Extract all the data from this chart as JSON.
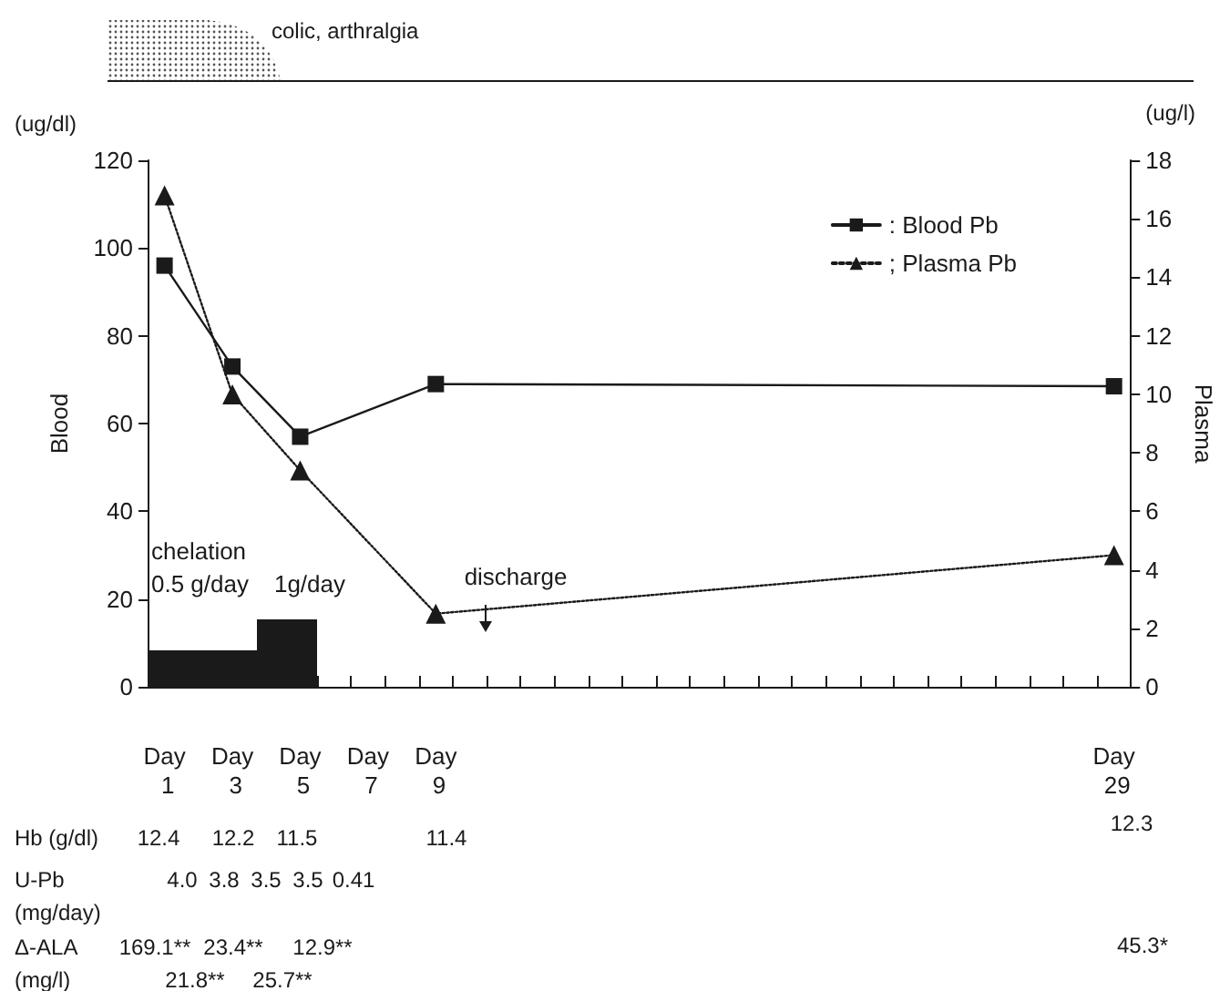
{
  "chart_data": {
    "type": "line",
    "ylabel": "Blood",
    "y2label": "Plasma",
    "categories": [
      "Day 1",
      null,
      "Day 3",
      null,
      "Day 5",
      null,
      "Day 7",
      null,
      "Day 9",
      null,
      null,
      null,
      null,
      null,
      null,
      null,
      null,
      null,
      null,
      null,
      null,
      null,
      null,
      null,
      null,
      null,
      null,
      null,
      "Day 29"
    ],
    "ylim": [
      0,
      120
    ],
    "yticks": [
      0,
      20,
      40,
      60,
      80,
      100,
      120
    ],
    "y2lim": [
      0,
      18
    ],
    "y2ticks": [
      0,
      2,
      4,
      6,
      8,
      10,
      12,
      14,
      16,
      18
    ],
    "series": [
      {
        "name": ": Blood Pb",
        "color": "#1a1a1a",
        "values": [
          96,
          null,
          73,
          null,
          57,
          null,
          null,
          null,
          69,
          null,
          null,
          null,
          null,
          null,
          null,
          null,
          null,
          null,
          null,
          null,
          null,
          null,
          null,
          null,
          null,
          null,
          null,
          null,
          68.5
        ],
        "marker": "square",
        "line_style": "solid"
      },
      {
        "name": "; Plasma Pb",
        "color": "#1a1a1a",
        "values": [
          16.8,
          null,
          10,
          null,
          7.4,
          null,
          null,
          null,
          2.5,
          null,
          null,
          null,
          null,
          null,
          null,
          null,
          null,
          null,
          null,
          null,
          null,
          null,
          null,
          null,
          null,
          null,
          null,
          null,
          4.5
        ],
        "axis": "y2",
        "marker": "triangle",
        "line_style": "dotted"
      }
    ],
    "legend": "top right",
    "grid": false,
    "annotations": [
      "colic, arthralgia",
      "(ug/dl)",
      "(ug/l)",
      "chelation",
      "0.5 g/day",
      "1g/day",
      "discharge",
      "Hb (g/dl)",
      "U-Pb",
      "(mg/day)",
      "Δ-ALA",
      "(mg/l)",
      "12.4",
      "12.2",
      "11.5",
      "11.4",
      "12.3",
      "4.0",
      "3.8",
      "3.5",
      "3.5",
      "0.41",
      "169.1**",
      "23.4**",
      "12.9**",
      "45.3*",
      "21.8**",
      "25.7**"
    ]
  }
}
